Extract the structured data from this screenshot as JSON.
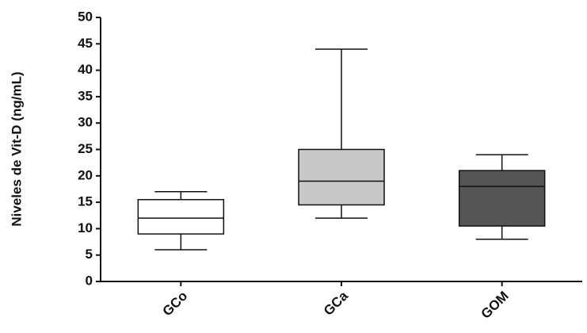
{
  "chart_data": {
    "type": "box",
    "y_label": "Niveles de Vit-D (ng/mL)",
    "categories": [
      "GCo",
      "GCa",
      "GOM"
    ],
    "boxes": [
      {
        "min": 6,
        "q1": 9,
        "median": 12,
        "q3": 15.5,
        "max": 17,
        "color": "#ffffff"
      },
      {
        "min": 12,
        "q1": 14.5,
        "median": 19,
        "q3": 25,
        "max": 44,
        "color": "#c8c8c8"
      },
      {
        "min": 8,
        "q1": 10.5,
        "median": 18,
        "q3": 21,
        "max": 24,
        "color": "#555555"
      }
    ],
    "ylim": [
      0,
      50
    ],
    "yticks": [
      0,
      5,
      10,
      15,
      20,
      25,
      30,
      35,
      40,
      45,
      50
    ]
  }
}
